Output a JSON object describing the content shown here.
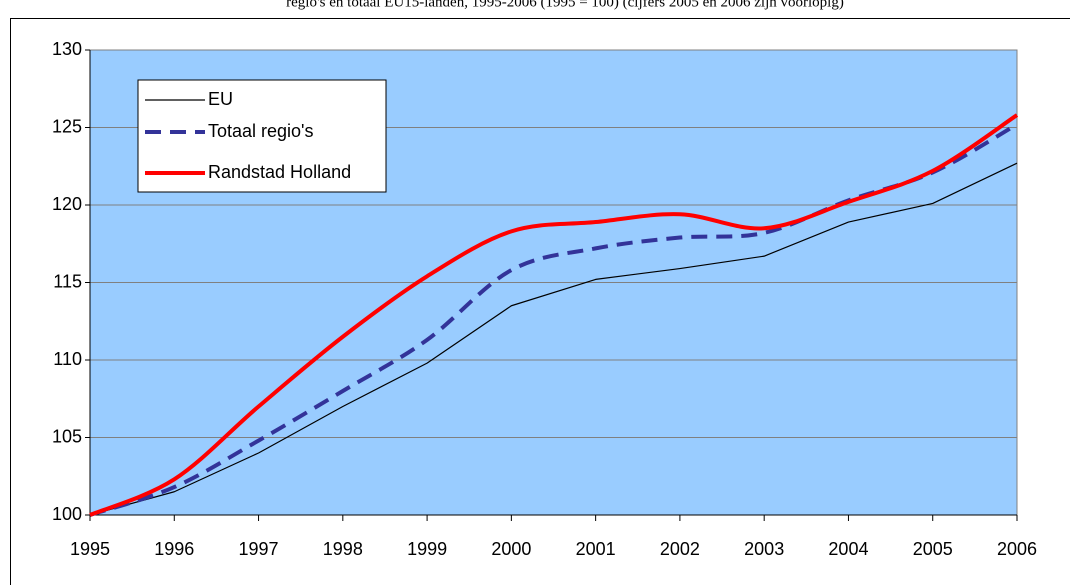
{
  "chart_data": {
    "type": "line",
    "title": "regio's en totaal EU15-landen, 1995-2006 (1995 = 100) (cijfers 2005 en 2006 zijn voorlopig)",
    "x": [
      1995,
      1996,
      1997,
      1998,
      1999,
      2000,
      2001,
      2002,
      2003,
      2004,
      2005,
      2006
    ],
    "series": [
      {
        "name": "EU",
        "color": "#000000",
        "values": [
          100,
          101.5,
          104,
          107,
          109.8,
          113.5,
          115.2,
          115.9,
          116.7,
          118.9,
          120.1,
          122.7
        ]
      },
      {
        "name": "Totaal regio's",
        "color": "#333399",
        "values": [
          100,
          101.8,
          104.8,
          108,
          111.3,
          115.8,
          117.2,
          117.9,
          118.2,
          120.3,
          122.1,
          125.2
        ]
      },
      {
        "name": "Randstad Holland",
        "color": "#ff0000",
        "values": [
          100,
          102.3,
          107,
          111.5,
          115.4,
          118.3,
          118.9,
          119.4,
          118.5,
          120.2,
          122.2,
          125.8
        ]
      }
    ],
    "xlim": [
      1995,
      2006
    ],
    "xticks": [
      1995,
      1996,
      1997,
      1998,
      1999,
      2000,
      2001,
      2002,
      2003,
      2004,
      2005,
      2006
    ],
    "ylim": [
      100,
      130
    ],
    "yticks": [
      100,
      105,
      110,
      115,
      120,
      125,
      130
    ],
    "grid": true,
    "legend": "upper left",
    "background": "#99ccff"
  }
}
